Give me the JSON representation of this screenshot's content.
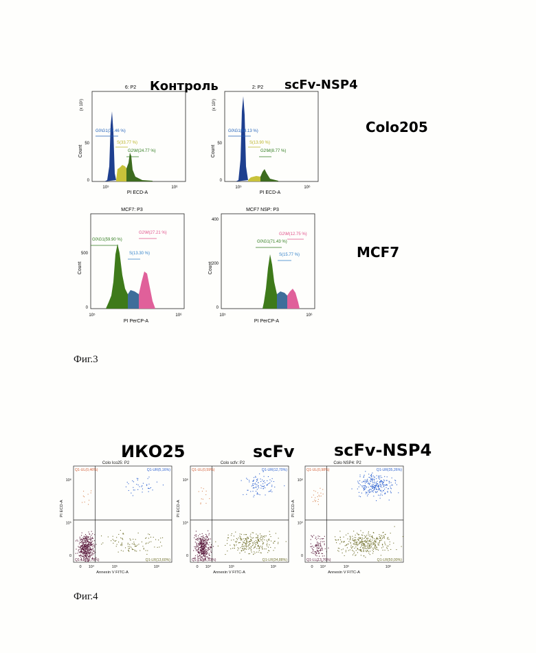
{
  "fig3": {
    "caption": "Фиг.3",
    "labels": {
      "control": "Контроль",
      "scfv_nsp4_top": "scFv-NSP4",
      "colo205": "Colo205",
      "mcf7": "MCF7"
    },
    "panels": [
      {
        "id": "colo-control",
        "title": "6: P2",
        "xlabel": "PI ECD-A",
        "ylabel": "Count",
        "scale": "(x 10¹)",
        "yticks": [
          "0",
          "50"
        ],
        "xticks": [
          "10⁵",
          "10⁶"
        ],
        "gates": [
          {
            "text": "G0\\G1(37.46 %)",
            "color": "#1f5fb8"
          },
          {
            "text": "S(33.77 %)",
            "color": "#b9b224"
          },
          {
            "text": "G2\\M(24.77 %)",
            "color": "#2d7a1c"
          }
        ]
      },
      {
        "id": "colo-nsp4",
        "title": "2: P2",
        "xlabel": "PI ECD-A",
        "ylabel": "Count",
        "scale": "(x 10¹)",
        "yticks": [
          "0",
          "50"
        ],
        "xticks": [
          "10⁵",
          "10⁶"
        ],
        "gates": [
          {
            "text": "G0\\G1(64.13 %)",
            "color": "#1f5fb8"
          },
          {
            "text": "S(13.90 %)",
            "color": "#b9b224"
          },
          {
            "text": "G2\\M(8.77 %)",
            "color": "#2d7a1c"
          }
        ]
      },
      {
        "id": "mcf7-control",
        "title": "MCF7: P3",
        "xlabel": "PI PerCP-A",
        "ylabel": "Count",
        "scale": "",
        "yticks": [
          "0",
          "500"
        ],
        "xticks": [
          "10⁵",
          "10⁶"
        ],
        "gates": [
          {
            "text": "G0\\G1(59.90 %)",
            "color": "#2d7a1c"
          },
          {
            "text": "S(13.30 %)",
            "color": "#2f7fc8"
          },
          {
            "text": "G2\\M(27.21 %)",
            "color": "#e0508a"
          }
        ]
      },
      {
        "id": "mcf7-nsp4",
        "title": "MCF7 NSP: P3",
        "xlabel": "PI PerCP-A",
        "ylabel": "Count",
        "scale": "",
        "yticks": [
          "0",
          "200",
          "400"
        ],
        "xticks": [
          "10⁵",
          "10⁶"
        ],
        "gates": [
          {
            "text": "G0\\G1(71.43 %)",
            "color": "#2d7a1c"
          },
          {
            "text": "S(15.77 %)",
            "color": "#2f7fc8"
          },
          {
            "text": "G2\\M(12.75 %)",
            "color": "#e0508a"
          }
        ]
      }
    ]
  },
  "fig4": {
    "caption": "Фиг.4",
    "labels": {
      "iko25": "ИКО25",
      "scfv": "scFv",
      "scfv_nsp4": "scFv-NSP4"
    },
    "panels": [
      {
        "id": "iko25",
        "title": "Colo Ico25: P2",
        "xlabel": "Annexin V FITC-A",
        "ylabel": "PI ECD-A",
        "xticks": [
          "0",
          "10⁴",
          "10⁵",
          "10⁶"
        ],
        "yticks": [
          "10⁶",
          "10⁵",
          "0"
        ],
        "quadrants": {
          "ul": "Q1-UL(0,46%)",
          "ur": "Q1-UR(5,16%)",
          "ll": "Q1-LL(60,78%)",
          "lr": "Q1-LR(13,60%)"
        },
        "fractions": {
          "ul": 0.46,
          "ur": 5.16,
          "ll": 60.78,
          "lr": 13.6
        }
      },
      {
        "id": "scfv",
        "title": "Colo scfv: P2",
        "xlabel": "Annexin V FITC-A",
        "ylabel": "PI ECD-A",
        "xticks": [
          "0",
          "10⁴",
          "10⁵",
          "10⁶"
        ],
        "yticks": [
          "10⁶",
          "10⁵",
          "0"
        ],
        "quadrants": {
          "ul": "Q1-UL(0,59%)",
          "ur": "Q1-UR(12,70%)",
          "ll": "Q1-LL(51,93%)",
          "lr": "Q1-LR(34,88%)"
        },
        "fractions": {
          "ul": 0.59,
          "ur": 12.7,
          "ll": 51.93,
          "lr": 34.88
        }
      },
      {
        "id": "scfv-nsp4",
        "title": "Colo NSP4: P2",
        "xlabel": "Annexin V FITC-A",
        "ylabel": "PI ECD-A",
        "xticks": [
          "0",
          "10⁴",
          "10⁵",
          "10⁶"
        ],
        "yticks": [
          "10⁶",
          "10⁵",
          "0"
        ],
        "quadrants": {
          "ul": "Q1-UL(0,98%)",
          "ur": "Q1-UR(35,26%)",
          "ll": "Q1-LL(13,76%)",
          "lr": "Q1-LR(50,00%)"
        },
        "fractions": {
          "ul": 0.98,
          "ur": 35.26,
          "ll": 13.76,
          "lr": 50.0
        }
      }
    ]
  },
  "colors": {
    "g0g1_colo": "#1e3f8f",
    "s_colo": "#c8c23a",
    "g2m_colo": "#3d6b1f",
    "g0g1_mcf": "#3e7a1a",
    "s_mcf": "#3e6e9a",
    "g2m_mcf": "#e0609a",
    "dot_ul": "#d98a5a",
    "dot_ur": "#2a5fd0",
    "dot_ll": "#5a1a3c",
    "dot_lr": "#6e6e2a"
  }
}
